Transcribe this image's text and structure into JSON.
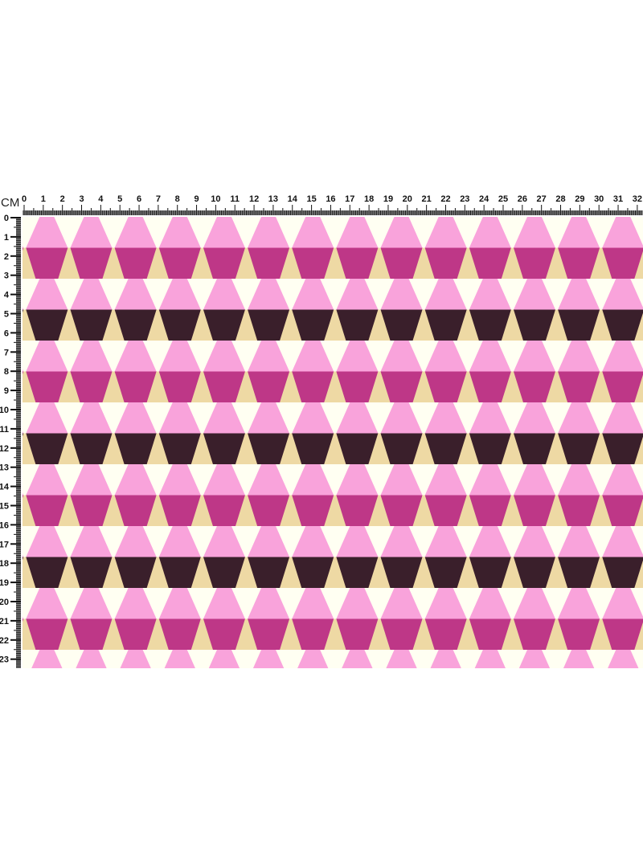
{
  "ruler": {
    "unit_label": "CM",
    "top_labels": [
      "0",
      "1",
      "2",
      "3",
      "4",
      "5",
      "6",
      "7",
      "8",
      "9",
      "10",
      "11",
      "12",
      "13",
      "14",
      "15",
      "16",
      "17",
      "18",
      "19",
      "20",
      "21",
      "22",
      "23",
      "24",
      "25",
      "26",
      "27",
      "28",
      "29",
      "30",
      "31",
      "32"
    ],
    "left_labels": [
      "0",
      "1",
      "2",
      "3",
      "4",
      "5",
      "6",
      "7",
      "8",
      "9",
      "10",
      "11",
      "12",
      "13",
      "14",
      "15",
      "16",
      "17",
      "18",
      "19",
      "20",
      "21",
      "22",
      "23"
    ]
  },
  "pattern": {
    "name": "hexagon trapezoid stripes",
    "colors": {
      "pink": "#F9A3DB",
      "magenta": "#BE3787",
      "dark": "#3A1F2B",
      "tan": "#EED9A4",
      "cream": "#FFFFF2"
    },
    "band_sequence": [
      "pink",
      "magenta",
      "pink",
      "dark"
    ]
  }
}
